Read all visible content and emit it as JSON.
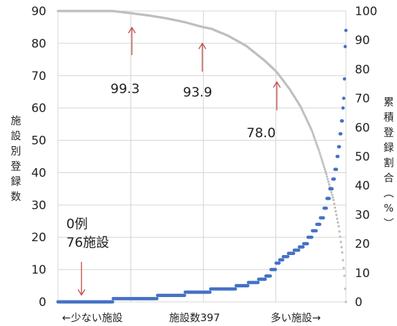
{
  "chart_data": {
    "type": "scatter",
    "y_left": {
      "label": "施設別登録数",
      "range": [
        0,
        90
      ],
      "ticks": [
        0,
        10,
        20,
        30,
        40,
        50,
        60,
        70,
        80,
        90
      ]
    },
    "y_right": {
      "label": "累積登録割合（%）",
      "range": [
        0,
        100
      ],
      "ticks": [
        0,
        10,
        20,
        30,
        40,
        50,
        60,
        70,
        80,
        90,
        100
      ]
    },
    "x_labels": {
      "left": "←少ない施設",
      "center": "施設数397",
      "right": "多い施設→"
    },
    "x_range": [
      1,
      397
    ],
    "grid": true,
    "series": [
      {
        "axis": "left",
        "color": "#4472c4",
        "steps": [
          {
            "from": 1,
            "to": 76,
            "value": 0
          },
          {
            "from": 77,
            "to": 137,
            "value": 1
          },
          {
            "from": 138,
            "to": 175,
            "value": 2
          },
          {
            "from": 176,
            "to": 210,
            "value": 3
          },
          {
            "from": 211,
            "to": 245,
            "value": 4
          },
          {
            "from": 246,
            "to": 262,
            "value": 5
          },
          {
            "from": 263,
            "to": 276,
            "value": 6
          },
          {
            "from": 277,
            "to": 286,
            "value": 7
          },
          {
            "from": 287,
            "to": 293,
            "value": 8
          },
          {
            "from": 294,
            "to": 300,
            "value": 10
          },
          {
            "from": 301,
            "to": 305,
            "value": 12
          },
          {
            "from": 306,
            "to": 310,
            "value": 13
          },
          {
            "from": 311,
            "to": 317,
            "value": 14
          },
          {
            "from": 318,
            "to": 325,
            "value": 15
          },
          {
            "from": 326,
            "to": 332,
            "value": 16
          },
          {
            "from": 333,
            "to": 338,
            "value": 17
          },
          {
            "from": 339,
            "to": 344,
            "value": 18
          },
          {
            "from": 345,
            "to": 350,
            "value": 20
          },
          {
            "from": 351,
            "to": 356,
            "value": 22
          },
          {
            "from": 357,
            "to": 361,
            "value": 24
          },
          {
            "from": 362,
            "to": 366,
            "value": 26
          },
          {
            "from": 367,
            "to": 370,
            "value": 29
          },
          {
            "from": 371,
            "to": 374,
            "value": 32
          },
          {
            "from": 375,
            "to": 378,
            "value": 35
          },
          {
            "from": 379,
            "to": 381,
            "value": 38
          },
          {
            "from": 382,
            "to": 384,
            "value": 41
          },
          {
            "from": 385,
            "to": 386,
            "value": 45
          },
          {
            "from": 387,
            "to": 388,
            "value": 48
          },
          {
            "from": 389,
            "to": 390,
            "value": 52
          },
          {
            "from": 391,
            "to": 392,
            "value": 56
          },
          {
            "from": 393,
            "to": 393,
            "value": 60
          },
          {
            "from": 394,
            "to": 394,
            "value": 63
          },
          {
            "from": 395,
            "to": 395,
            "value": 69
          },
          {
            "from": 396,
            "to": 396,
            "value": 79
          },
          {
            "from": 397,
            "to": 397,
            "value": 84
          }
        ]
      },
      {
        "axis": "right",
        "color": "#bfbfbf",
        "points": [
          [
            1,
            100
          ],
          [
            76,
            100
          ],
          [
            100,
            99.3
          ],
          [
            125,
            98.5
          ],
          [
            150,
            97.5
          ],
          [
            175,
            96.2
          ],
          [
            200,
            94.5
          ],
          [
            212,
            93.9
          ],
          [
            235,
            91.5
          ],
          [
            260,
            88
          ],
          [
            285,
            83
          ],
          [
            300,
            79.5
          ],
          [
            305,
            78.0
          ],
          [
            320,
            73
          ],
          [
            335,
            67
          ],
          [
            350,
            59
          ],
          [
            360,
            52
          ],
          [
            370,
            44
          ],
          [
            380,
            35
          ],
          [
            387,
            26
          ],
          [
            392,
            17
          ],
          [
            395,
            9
          ],
          [
            397,
            0
          ]
        ]
      }
    ],
    "annotations": [
      {
        "text": "0例",
        "x": 76
      },
      {
        "text": "76施設",
        "x": 76
      },
      {
        "text": "99.3",
        "x": 100
      },
      {
        "text": "93.9",
        "x": 212
      },
      {
        "text": "78.0",
        "x": 305
      }
    ]
  }
}
